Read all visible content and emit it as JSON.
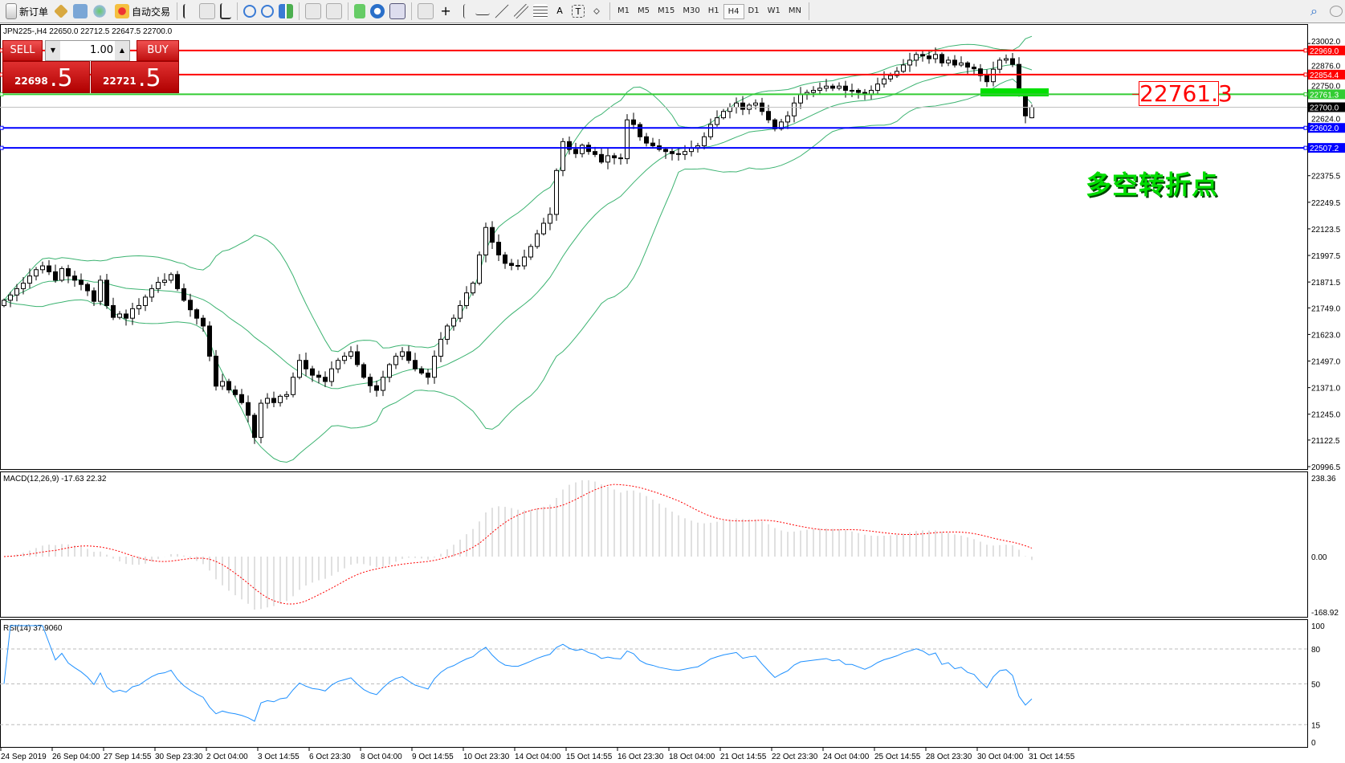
{
  "toolbar": {
    "new_order": "新订单",
    "auto_trading": "自动交易",
    "timeframes": [
      "M1",
      "M5",
      "M15",
      "M30",
      "H1",
      "H4",
      "D1",
      "W1",
      "MN"
    ],
    "active_timeframe": "H4",
    "icons": [
      "new-order-icon",
      "gold-icon",
      "profile-icon",
      "signal-icon",
      "auto-trading-icon",
      "bar-chart-icon",
      "candle-chart-icon",
      "line-chart-icon",
      "zoom-in-icon",
      "zoom-out-icon",
      "tile-icon",
      "autoscroll-icon",
      "chart-shift-icon",
      "indicators-icon",
      "periods-icon",
      "templates-icon",
      "cursor-icon",
      "crosshair-icon",
      "vertical-line-icon",
      "horizontal-line-icon",
      "trendline-icon",
      "equidistant-channel-icon",
      "fibonacci-icon",
      "text-icon",
      "text-label-icon",
      "arrows-icon",
      "search-icon",
      "chat-icon"
    ]
  },
  "chart": {
    "header": "JPN225-,H4  22650.0 22712.5 22647.5 22700.0",
    "one_click": {
      "sell_label": "SELL",
      "buy_label": "BUY",
      "lot": "1.00",
      "sell_main": "22698",
      "sell_frac": ".5",
      "buy_main": "22721",
      "buy_frac": ".5"
    },
    "annotation_price": "22761.3",
    "annotation_text": "多空转折点",
    "price_ticks": [
      "23002.0",
      "22876.0",
      "22750.0",
      "22624.0",
      "22375.5",
      "22249.5",
      "22123.5",
      "21997.5",
      "21871.5",
      "21749.0",
      "21623.0",
      "21497.0",
      "21371.0",
      "21245.0",
      "21122.5",
      "20996.5"
    ],
    "hlines": [
      {
        "price": 22969.0,
        "label": "22969.0",
        "color": "#ff0000"
      },
      {
        "price": 22854.4,
        "label": "22854.4",
        "color": "#ff0000"
      },
      {
        "price": 22761.3,
        "label": "22761.3",
        "color": "#33cc33"
      },
      {
        "price": 22602.0,
        "label": "22602.0",
        "color": "#0000ff"
      },
      {
        "price": 22507.2,
        "label": "22507.2",
        "color": "#0000ff"
      }
    ],
    "bid": {
      "price": 22700.0,
      "label": "22700.0"
    },
    "colors": {
      "bands": "#3cb371",
      "macd_signal": "#ff0000",
      "macd_hist": "#c0c0c0",
      "rsi": "#1e90ff",
      "zone": "#00e000"
    },
    "time_labels": [
      "24 Sep 2019",
      "26 Sep 04:00",
      "27 Sep 14:55",
      "30 Sep 23:30",
      "2 Oct 04:00",
      "3 Oct 14:55",
      "6 Oct 23:30",
      "8 Oct 04:00",
      "9 Oct 14:55",
      "10 Oct 23:30",
      "14 Oct 04:00",
      "15 Oct 14:55",
      "16 Oct 23:30",
      "18 Oct 04:00",
      "21 Oct 14:55",
      "22 Oct 23:30",
      "24 Oct 04:00",
      "25 Oct 14:55",
      "28 Oct 23:30",
      "30 Oct 04:00",
      "31 Oct 14:55"
    ]
  },
  "macd": {
    "label": "MACD(12,26,9) -17.63 22.32",
    "ticks": [
      "238.36",
      "0.00",
      "-168.92"
    ]
  },
  "rsi": {
    "label": "RSI(14) 37.9060",
    "ticks": [
      "100",
      "80",
      "50",
      "15",
      "0"
    ]
  },
  "chart_data": {
    "type": "candlestick",
    "symbol": "JPN225-",
    "timeframe": "H4",
    "ylim": [
      20996.5,
      23002.0
    ],
    "closes": [
      21785,
      21810,
      21840,
      21866,
      21900,
      21930,
      21948,
      21920,
      21880,
      21935,
      21900,
      21880,
      21860,
      21830,
      21780,
      21880,
      21760,
      21704,
      21720,
      21700,
      21745,
      21760,
      21800,
      21840,
      21870,
      21880,
      21907,
      21840,
      21785,
      21740,
      21700,
      21663,
      21520,
      21378,
      21400,
      21360,
      21338,
      21300,
      21240,
      21135,
      21297,
      21320,
      21300,
      21330,
      21338,
      21420,
      21500,
      21460,
      21430,
      21420,
      21400,
      21460,
      21500,
      21520,
      21541,
      21480,
      21420,
      21380,
      21358,
      21420,
      21480,
      21520,
      21541,
      21500,
      21460,
      21440,
      21420,
      21520,
      21600,
      21663,
      21700,
      21760,
      21820,
      21866,
      22000,
      22130,
      22060,
      22000,
      21960,
      21950,
      21948,
      21990,
      22040,
      22100,
      22150,
      22192,
      22400,
      22537,
      22500,
      22480,
      22520,
      22490,
      22476,
      22440,
      22470,
      22460,
      22456,
      22640,
      22618,
      22560,
      22530,
      22517,
      22500,
      22490,
      22480,
      22476,
      22490,
      22505,
      22517,
      22560,
      22618,
      22650,
      22680,
      22700,
      22720,
      22690,
      22710,
      22720,
      22680,
      22640,
      22598,
      22630,
      22659,
      22720,
      22760,
      22770,
      22780,
      22790,
      22800,
      22790,
      22800,
      22780,
      22780,
      22770,
      22760,
      22780,
      22810,
      22834,
      22850,
      22870,
      22900,
      22923,
      22950,
      22943,
      22930,
      22950,
      22910,
      22923,
      22900,
      22910,
      22890,
      22882,
      22850,
      22821,
      22880,
      22923,
      22930,
      22903,
      22760,
      22659,
      22700
    ],
    "last_bar": {
      "open": 22650.0,
      "high": 22712.5,
      "low": 22647.5,
      "close": 22700.0
    }
  }
}
